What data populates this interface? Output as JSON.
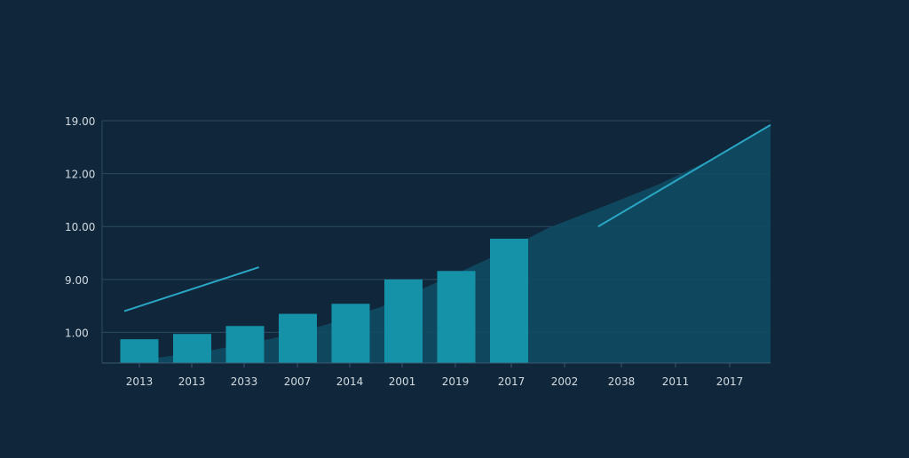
{
  "chart_data": {
    "type": "bar",
    "title": "",
    "xlabel": "",
    "ylabel": "",
    "grid": true,
    "legend": "none",
    "y_tick_labels": [
      "19.00",
      "12.00",
      "10.00",
      "9.00",
      "1.00"
    ],
    "y_tick_levels": [
      4,
      3,
      2,
      1,
      0
    ],
    "ylim": [
      -0.58,
      4
    ],
    "categories": [
      "2013",
      "2013",
      "2033",
      "2007",
      "2014",
      "2001",
      "2019",
      "2017",
      "2002",
      "2038",
      "2011",
      "2017"
    ],
    "bar_values": [
      -0.13,
      -0.03,
      0.12,
      0.35,
      0.54,
      1.0,
      1.16,
      1.77
    ],
    "area_values": [
      -0.48,
      -0.33,
      -0.13,
      0.14,
      0.48,
      0.94,
      1.42,
      1.97,
      2.38,
      2.8,
      3.3,
      3.92
    ],
    "line_segments": [
      {
        "x": [
          0,
          2.5
        ],
        "y": [
          0.4,
          1.23
        ]
      },
      {
        "x": [
          8.8,
          12
        ],
        "y": [
          2.0,
          3.92
        ]
      }
    ],
    "colors": {
      "background": "#10263a",
      "bar": "#1592a8",
      "area": "#0f4d63",
      "line": "#2aa6c4",
      "grid": "#2c4b60",
      "text": "#d2dbe2"
    }
  }
}
